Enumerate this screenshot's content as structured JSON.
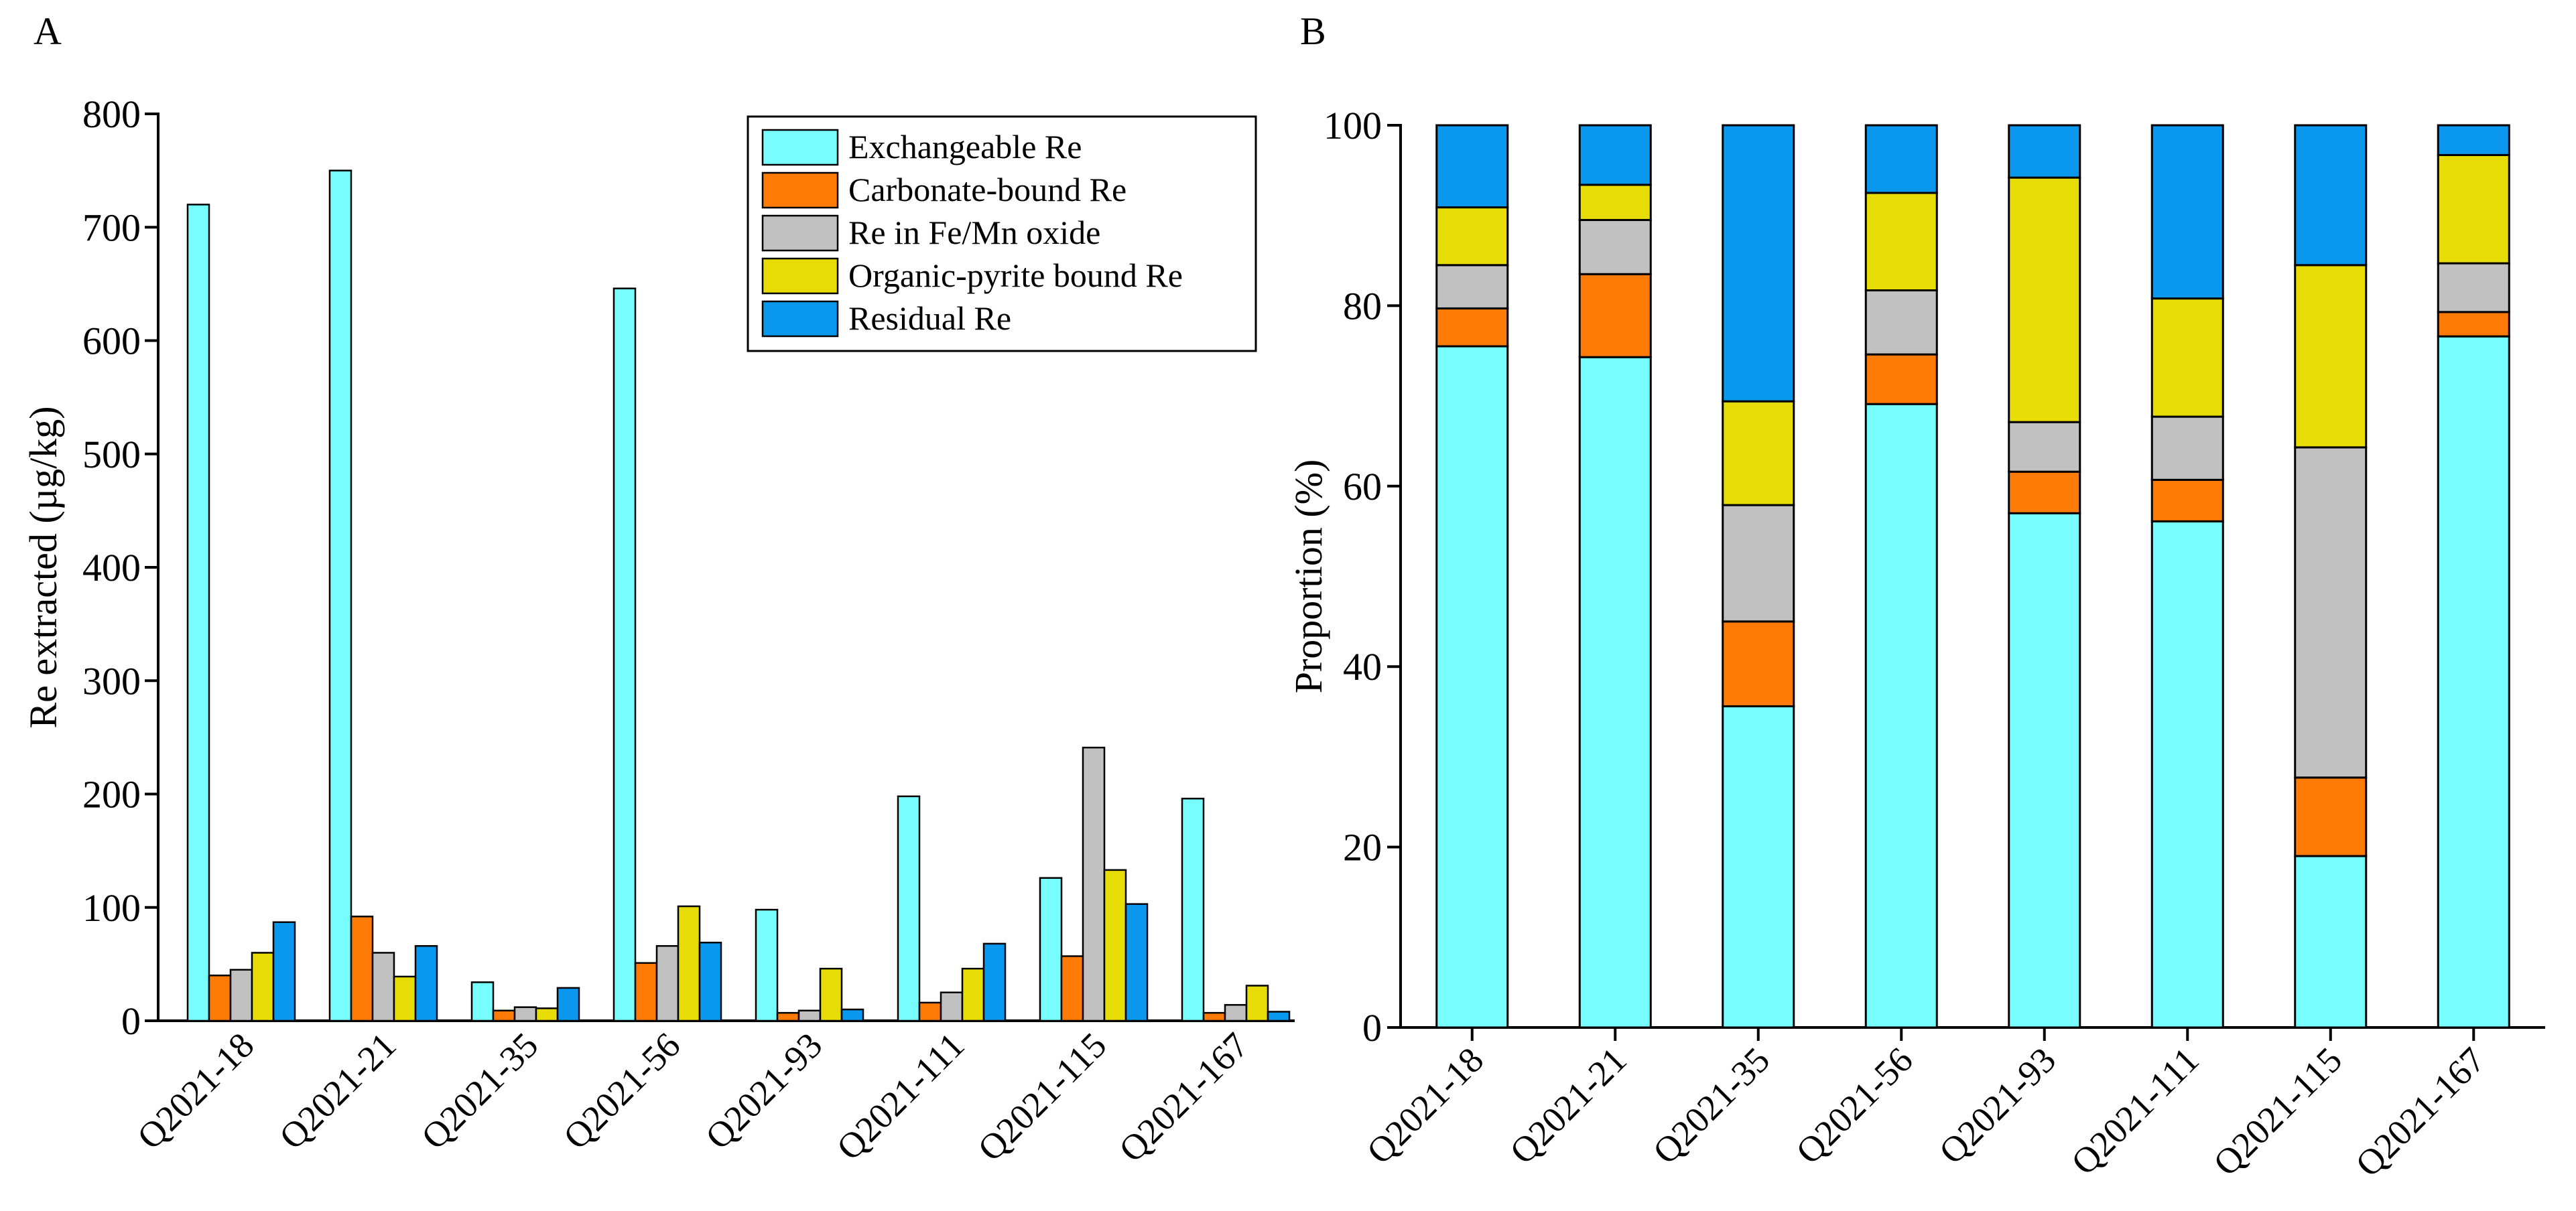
{
  "panels": {
    "a": {
      "label": "A"
    },
    "b": {
      "label": "B"
    }
  },
  "colors": {
    "exchangeable": "#77FDFE",
    "carbonate": "#FF7B08",
    "femn": "#C1C1C1",
    "organic": "#E8DC06",
    "residual": "#0998EE"
  },
  "chart_data": [
    {
      "type": "bar",
      "panel": "A",
      "title": "",
      "xlabel": "",
      "ylabel": "Re extracted (µg/kg)",
      "ylim": [
        0,
        800
      ],
      "yticks": [
        0,
        100,
        200,
        300,
        400,
        500,
        600,
        700,
        800
      ],
      "legend_position": "top-right",
      "categories": [
        "Q2021-18",
        "Q2021-21",
        "Q2021-35",
        "Q2021-56",
        "Q2021-93",
        "Q2021-111",
        "Q2021-115",
        "Q2021-167"
      ],
      "series": [
        {
          "name": "Exchangeable Re",
          "color_key": "exchangeable",
          "values": [
            720,
            750,
            34,
            646,
            98,
            198,
            126,
            196
          ]
        },
        {
          "name": "Carbonate-bound Re",
          "color_key": "carbonate",
          "values": [
            40,
            92,
            9,
            51,
            7,
            16,
            57,
            7
          ]
        },
        {
          "name": "Re in Fe/Mn oxide",
          "color_key": "femn",
          "values": [
            45,
            60,
            12,
            66,
            9,
            25,
            241,
            14
          ]
        },
        {
          "name": "Organic-pyrite bound Re",
          "color_key": "organic",
          "values": [
            60,
            39,
            11,
            101,
            46,
            46,
            133,
            31
          ]
        },
        {
          "name": "Residual Re",
          "color_key": "residual",
          "values": [
            87,
            66,
            29,
            69,
            10,
            68,
            103,
            8
          ]
        }
      ]
    },
    {
      "type": "stacked-bar",
      "panel": "B",
      "title": "",
      "xlabel": "",
      "ylabel": "Proportion (%)",
      "ylim": [
        0,
        100
      ],
      "yticks": [
        0,
        20,
        40,
        60,
        80,
        100
      ],
      "categories": [
        "Q2021-18",
        "Q2021-21",
        "Q2021-35",
        "Q2021-56",
        "Q2021-93",
        "Q2021-111",
        "Q2021-115",
        "Q2021-167"
      ],
      "series": [
        {
          "name": "Exchangeable Re",
          "color_key": "exchangeable",
          "values": [
            75.5,
            74.3,
            35.6,
            69.1,
            57.0,
            56.1,
            19.0,
            76.6
          ]
        },
        {
          "name": "Carbonate-bound Re",
          "color_key": "carbonate",
          "values": [
            4.2,
            9.2,
            9.4,
            5.5,
            4.6,
            4.6,
            8.7,
            2.7
          ]
        },
        {
          "name": "Re in Fe/Mn oxide",
          "color_key": "femn",
          "values": [
            4.8,
            6.0,
            12.9,
            7.1,
            5.5,
            7.0,
            36.6,
            5.4
          ]
        },
        {
          "name": "Organic-pyrite bound Re",
          "color_key": "organic",
          "values": [
            6.4,
            3.9,
            11.5,
            10.8,
            27.1,
            13.1,
            20.2,
            12.0
          ]
        },
        {
          "name": "Residual Re",
          "color_key": "residual",
          "values": [
            9.1,
            6.6,
            30.6,
            7.5,
            5.8,
            19.2,
            15.5,
            3.3
          ]
        }
      ]
    }
  ]
}
